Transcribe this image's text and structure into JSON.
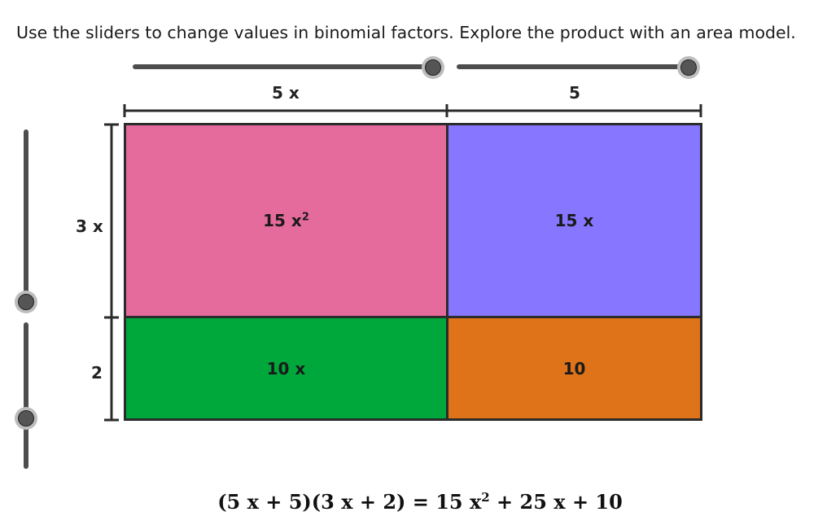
{
  "instruction": "Use the sliders to change values in binomial factors. Explore the product with an area model.",
  "sliders": {
    "top_left": {
      "value": 5,
      "max": 5
    },
    "top_right": {
      "value": 5,
      "max": 5
    },
    "left_upper": {
      "value": 3,
      "max": 3
    },
    "left_lower": {
      "value": 2,
      "max": 2
    }
  },
  "dimensions": {
    "top_left_label": "5 x",
    "top_right_label": "5",
    "left_upper_label": "3 x",
    "left_lower_label": "2"
  },
  "areas": {
    "top_left": {
      "text": "15 x",
      "exp": "2",
      "color": "#e66b9d"
    },
    "top_right": {
      "text": "15 x",
      "color": "#8776ff"
    },
    "bottom_left": {
      "text": "10 x",
      "color": "#00a83b"
    },
    "bottom_right": {
      "text": "10",
      "color": "#df731a"
    }
  },
  "equation": {
    "lhs": "(5 x + 5)(3 x + 2) = 15 x",
    "exp": "2",
    "rhs": " + 25 x + 10"
  }
}
